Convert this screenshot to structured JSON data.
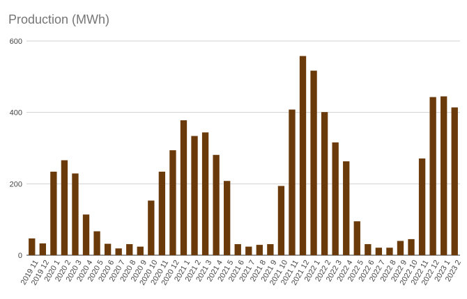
{
  "chart_data": {
    "type": "bar",
    "title": "Production (MWh)",
    "xlabel": "",
    "ylabel": "",
    "ylim": [
      0,
      600
    ],
    "yticks": [
      0,
      200,
      400,
      600
    ],
    "grid": true,
    "bar_color": "#6b3a0a",
    "categories": [
      "2019 11",
      "2019 12",
      "2020 1",
      "2020 2",
      "2020 3",
      "2020 4",
      "2020 5",
      "2020 6",
      "2020 7",
      "2020 8",
      "2020 9",
      "2020 10",
      "2020 11",
      "2020 12",
      "2021 1",
      "2021 2",
      "2021 3",
      "2021 4",
      "2021 5",
      "2021 6",
      "2021 7",
      "2021 8",
      "2021 9",
      "2021 10",
      "2021 11",
      "2021 12",
      "2022 1",
      "2022 2",
      "2022 3",
      "2022 4",
      "2022 5",
      "2022 6",
      "2022 7",
      "2022 8",
      "2022 9",
      "2022 10",
      "2022 11",
      "2022 12",
      "2023 1",
      "2023 2"
    ],
    "values": [
      47,
      33,
      234,
      266,
      229,
      114,
      67,
      32,
      19,
      31,
      24,
      153,
      234,
      294,
      378,
      334,
      344,
      281,
      208,
      31,
      24,
      29,
      31,
      194,
      408,
      558,
      517,
      401,
      316,
      263,
      95,
      31,
      21,
      21,
      40,
      45,
      271,
      443,
      445,
      414
    ]
  }
}
